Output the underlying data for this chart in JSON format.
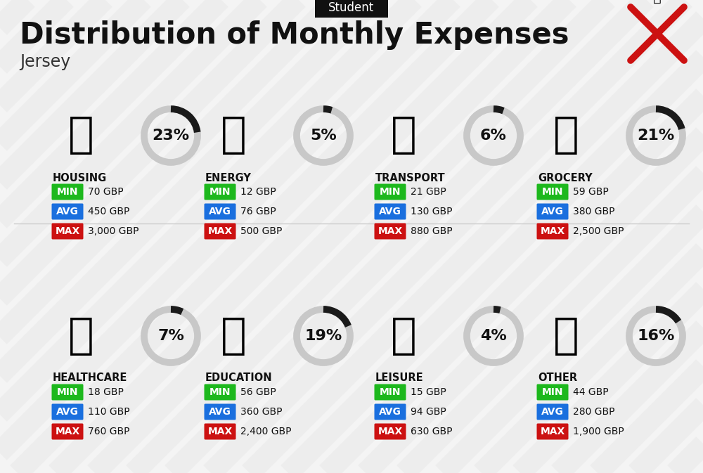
{
  "title": "Distribution of Monthly Expenses",
  "subtitle": "Jersey",
  "tag": "Student",
  "bg_color": "#ebebeb",
  "categories": [
    {
      "name": "HOUSING",
      "pct": 23,
      "min": "70 GBP",
      "avg": "450 GBP",
      "max": "3,000 GBP",
      "row": 0,
      "col": 0
    },
    {
      "name": "ENERGY",
      "pct": 5,
      "min": "12 GBP",
      "avg": "76 GBP",
      "max": "500 GBP",
      "row": 0,
      "col": 1
    },
    {
      "name": "TRANSPORT",
      "pct": 6,
      "min": "21 GBP",
      "avg": "130 GBP",
      "max": "880 GBP",
      "row": 0,
      "col": 2
    },
    {
      "name": "GROCERY",
      "pct": 21,
      "min": "59 GBP",
      "avg": "380 GBP",
      "max": "2,500 GBP",
      "row": 0,
      "col": 3
    },
    {
      "name": "HEALTHCARE",
      "pct": 7,
      "min": "18 GBP",
      "avg": "110 GBP",
      "max": "760 GBP",
      "row": 1,
      "col": 0
    },
    {
      "name": "EDUCATION",
      "pct": 19,
      "min": "56 GBP",
      "avg": "360 GBP",
      "max": "2,400 GBP",
      "row": 1,
      "col": 1
    },
    {
      "name": "LEISURE",
      "pct": 4,
      "min": "15 GBP",
      "avg": "94 GBP",
      "max": "630 GBP",
      "row": 1,
      "col": 2
    },
    {
      "name": "OTHER",
      "pct": 16,
      "min": "44 GBP",
      "avg": "280 GBP",
      "max": "1,900 GBP",
      "row": 1,
      "col": 3
    }
  ],
  "min_color": "#1db81d",
  "avg_color": "#1a6fde",
  "max_color": "#cc1111",
  "dark_arc_color": "#1a1a1a",
  "light_arc_color": "#c8c8c8",
  "title_fontsize": 30,
  "subtitle_fontsize": 17,
  "tag_fontsize": 12,
  "cat_fontsize": 10.5,
  "val_fontsize": 10,
  "pct_fontsize": 16,
  "stripe_color": "#d8d8d8",
  "stripe_alpha": 0.55
}
